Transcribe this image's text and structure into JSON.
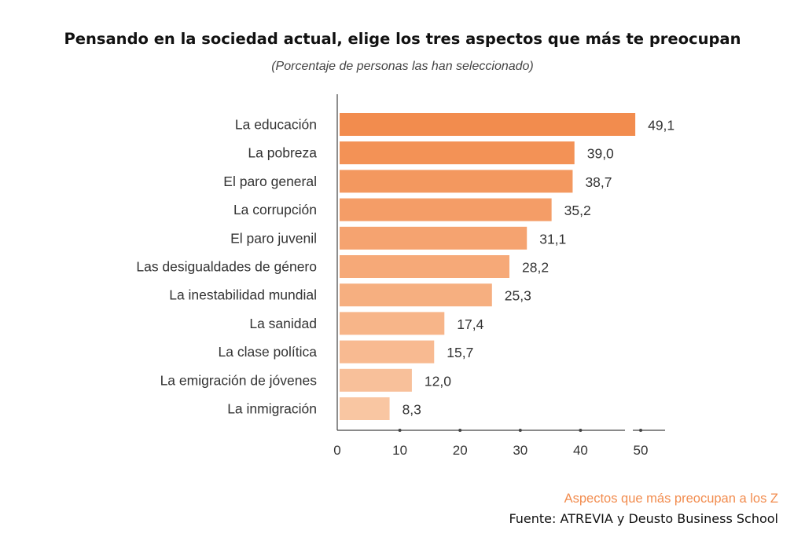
{
  "chart_data": {
    "type": "bar",
    "orientation": "horizontal",
    "title": "Pensando en la sociedad actual, elige los tres aspectos que más te preocupan",
    "subtitle": "(Porcentaje de personas las han seleccionado)",
    "categories": [
      "La educación",
      "La pobreza",
      "El paro general",
      "La corrupción",
      "El paro juvenil",
      "Las desigualdades de género",
      "La inestabilidad mundial",
      "La sanidad",
      "La clase política",
      "La emigración de jóvenes",
      "La inmigración"
    ],
    "values": [
      49.1,
      39.0,
      38.7,
      35.2,
      31.1,
      28.2,
      25.3,
      17.4,
      15.7,
      12.0,
      8.3
    ],
    "value_labels": [
      "49,1",
      "39,0",
      "38,7",
      "35,2",
      "31,1",
      "28,2",
      "25,3",
      "17,4",
      "15,7",
      "12,0",
      "8,3"
    ],
    "xticks": [
      "0",
      "10",
      "20",
      "30",
      "40",
      "50"
    ],
    "xlim": [
      0,
      54
    ],
    "grid": false,
    "legend": "none",
    "colors": {
      "bar_dark": "#f28c4e",
      "bar_light": "#f9c6a2",
      "axis": "#444444"
    }
  },
  "footer": {
    "note": "Aspectos que más preocupan a los Z",
    "source": "Fuente: ATREVIA y Deusto Business School"
  }
}
